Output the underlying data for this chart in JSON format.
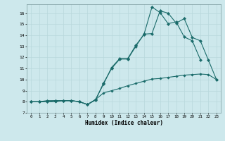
{
  "title": "",
  "xlabel": "Humidex (Indice chaleur)",
  "background_color": "#cde8ec",
  "grid_color": "#b8d8dc",
  "line_color": "#1a6b6a",
  "xlim": [
    -0.5,
    23.5
  ],
  "ylim": [
    7,
    16.8
  ],
  "yticks": [
    7,
    8,
    9,
    10,
    11,
    12,
    13,
    14,
    15,
    16
  ],
  "xticks": [
    0,
    1,
    2,
    3,
    4,
    5,
    6,
    7,
    8,
    9,
    10,
    11,
    12,
    13,
    14,
    15,
    16,
    17,
    18,
    19,
    20,
    21,
    22,
    23
  ],
  "line1_x": [
    0,
    1,
    2,
    3,
    4,
    5,
    6,
    7,
    8,
    9,
    10,
    11,
    12,
    13,
    14,
    15,
    16,
    17,
    18,
    19,
    20,
    21,
    22,
    23
  ],
  "line1_y": [
    8.0,
    8.0,
    8.0,
    8.0,
    8.1,
    8.1,
    8.0,
    7.75,
    8.2,
    8.8,
    9.0,
    9.2,
    9.45,
    9.65,
    9.85,
    10.05,
    10.1,
    10.2,
    10.3,
    10.4,
    10.45,
    10.5,
    10.45,
    10.0
  ],
  "line2_x": [
    0,
    1,
    2,
    3,
    4,
    5,
    6,
    7,
    8,
    9,
    10,
    11,
    12,
    13,
    14,
    15,
    16,
    17,
    18,
    19,
    20,
    21,
    22,
    23
  ],
  "line2_y": [
    8.0,
    8.0,
    8.1,
    8.1,
    8.1,
    8.1,
    8.0,
    7.75,
    8.15,
    9.7,
    11.0,
    11.85,
    11.85,
    13.0,
    14.1,
    14.15,
    16.2,
    16.0,
    15.1,
    15.5,
    13.8,
    13.5,
    11.75,
    10.0
  ],
  "line3_x": [
    0,
    1,
    2,
    3,
    4,
    5,
    6,
    7,
    8,
    9,
    10,
    11,
    12,
    13,
    14,
    15,
    16,
    17,
    18,
    19,
    20,
    21
  ],
  "line3_y": [
    8.0,
    8.0,
    8.0,
    8.1,
    8.1,
    8.1,
    8.0,
    7.75,
    8.2,
    9.6,
    11.1,
    11.9,
    11.9,
    13.1,
    14.05,
    16.55,
    16.05,
    15.05,
    15.2,
    13.85,
    13.5,
    11.8
  ]
}
